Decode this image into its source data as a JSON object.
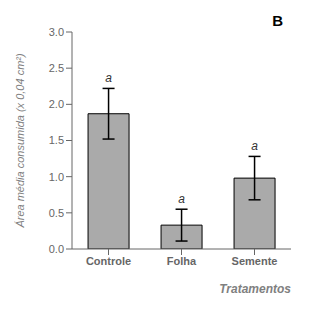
{
  "chart_data": {
    "type": "bar",
    "categories": [
      "Controle",
      "Folha",
      "Semente"
    ],
    "values": [
      1.87,
      0.33,
      0.98
    ],
    "errors": [
      0.35,
      0.22,
      0.3
    ],
    "color": "#aaaaaa",
    "ylim": [
      0,
      3.0
    ],
    "yticks": [
      {
        "value": 0,
        "label": "0.0"
      },
      0.5,
      {
        "value": 1,
        "label": "1.0"
      },
      1.5,
      {
        "value": 2,
        "label": "2.0"
      },
      2.5,
      {
        "value": 3,
        "label": "3.0"
      }
    ],
    "ylabel": "Área média consumida (x 0,04 cm²)",
    "xlabel": "Tratamentos",
    "annotations": [
      {
        "text": "a",
        "x": "Controle"
      },
      {
        "text": "a",
        "x": "Folha"
      },
      {
        "text": "a",
        "x": "Semente"
      },
      {
        "text": "B"
      }
    ],
    "grid": false
  }
}
